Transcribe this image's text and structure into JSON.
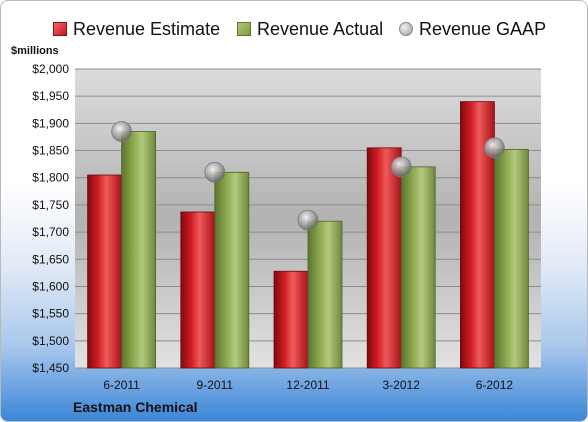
{
  "legend": {
    "estimate": "Revenue Estimate",
    "actual": "Revenue Actual",
    "gaap": "Revenue GAAP"
  },
  "y_unit_label": "$millions",
  "footer": {
    "company": "Eastman Chemical"
  },
  "colors": {
    "estimate": "#c8161d",
    "actual": "#8aa64b",
    "gaap": "#b0b0b0"
  },
  "chart_data": {
    "type": "bar",
    "title": "",
    "xlabel": "",
    "ylabel": "$millions",
    "categories": [
      "6-2011",
      "9-2011",
      "12-2011",
      "3-2012",
      "6-2012"
    ],
    "series": [
      {
        "name": "Revenue Estimate",
        "kind": "bar",
        "values": [
          1805,
          1737,
          1628,
          1855,
          1940
        ]
      },
      {
        "name": "Revenue Actual",
        "kind": "bar",
        "values": [
          1885,
          1810,
          1720,
          1820,
          1852
        ]
      },
      {
        "name": "Revenue GAAP",
        "kind": "point",
        "values": [
          1885,
          1810,
          1722,
          1820,
          1855
        ]
      }
    ],
    "ylim": [
      1450,
      2000
    ],
    "yticks": [
      1450,
      1500,
      1550,
      1600,
      1650,
      1700,
      1750,
      1800,
      1850,
      1900,
      1950,
      2000
    ],
    "ytick_labels": [
      "$1,450",
      "$1,500",
      "$1,550",
      "$1,600",
      "$1,650",
      "$1,700",
      "$1,750",
      "$1,800",
      "$1,850",
      "$1,900",
      "$1,950",
      "$2,000"
    ],
    "grid": true,
    "legend_position": "top"
  }
}
